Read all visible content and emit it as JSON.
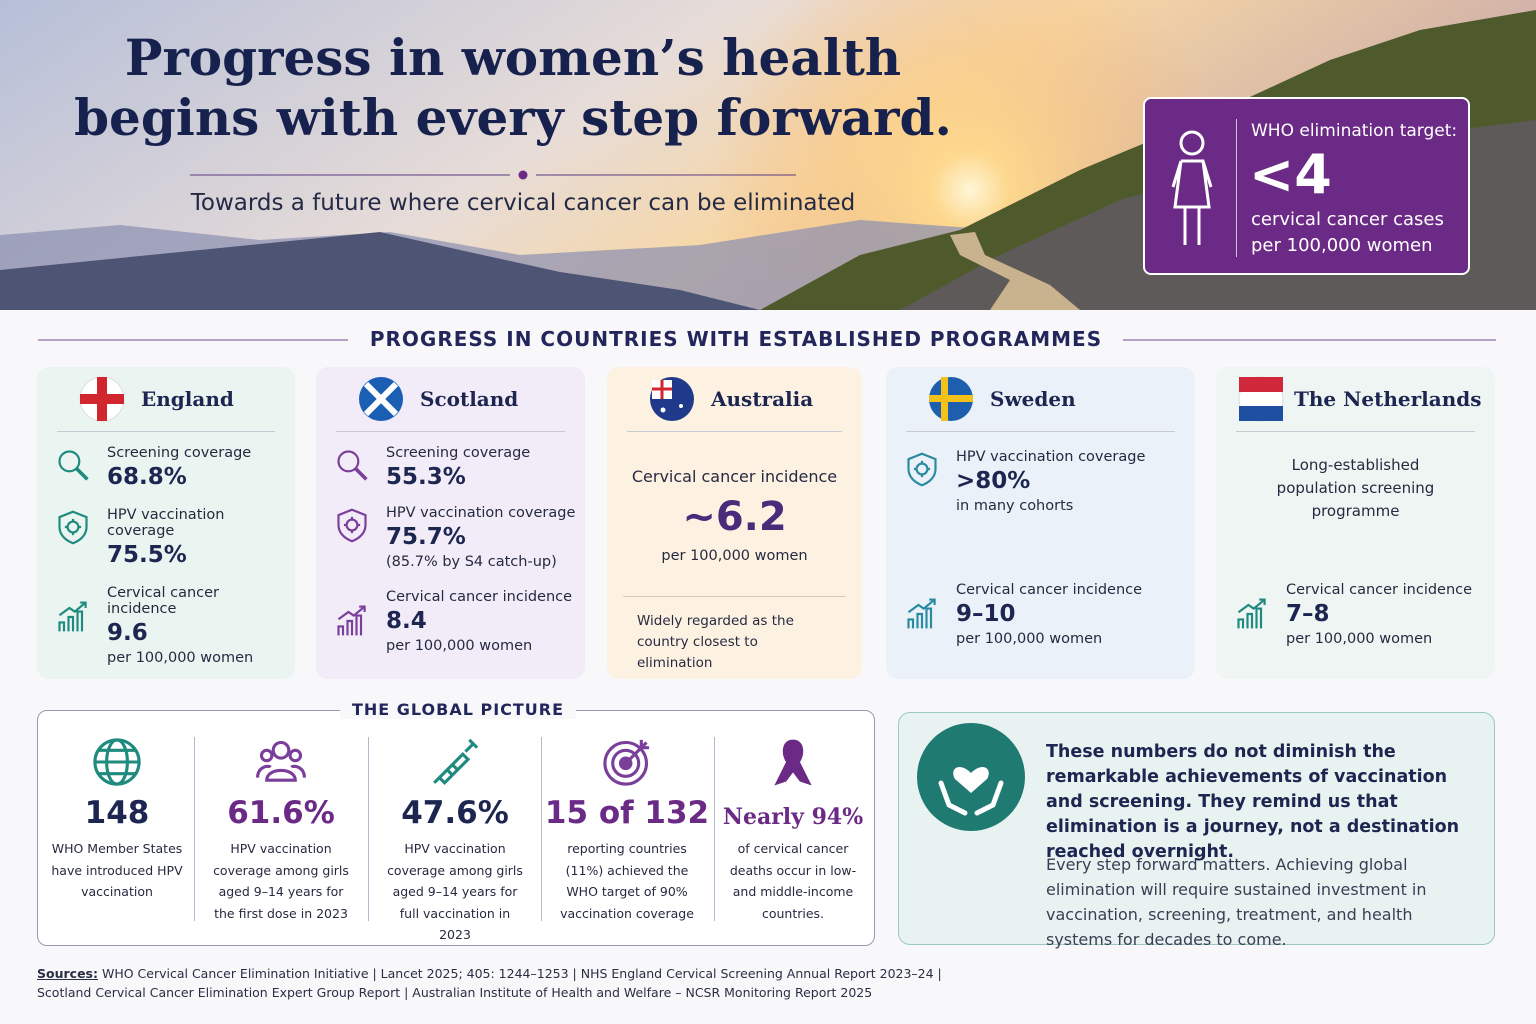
{
  "header": {
    "title_lines": [
      "Progress in women’s health",
      "begins with every step forward."
    ],
    "subtitle": "Towards a future where cervical cancer can be eliminated"
  },
  "target": {
    "label": "WHO elimination target:",
    "value": "<4",
    "unit_lines": [
      "cervical cancer cases",
      "per 100,000 women"
    ]
  },
  "section_title": "PROGRESS IN COUNTRIES WITH ESTABLISHED PROGRAMMES",
  "countries": [
    {
      "name": "England",
      "stats": [
        {
          "label": "Screening coverage",
          "value": "68.8%"
        },
        {
          "label": "HPV vaccination coverage",
          "value": "75.5%"
        },
        {
          "label": "Cervical cancer incidence",
          "value": "9.6",
          "note": "per 100,000 women"
        }
      ]
    },
    {
      "name": "Scotland",
      "stats": [
        {
          "label": "Screening coverage",
          "value": "55.3%"
        },
        {
          "label": "HPV vaccination coverage",
          "value": "75.7%",
          "note": "(85.7% by S4 catch-up)"
        },
        {
          "label": "Cervical cancer incidence",
          "value": "8.4",
          "note": "per 100,000 women"
        }
      ]
    },
    {
      "name": "Australia",
      "stats": [
        {
          "label": "Cervical cancer incidence",
          "value": "~6.2",
          "note": "per 100,000 women"
        }
      ],
      "remark": "Widely regarded as the country closest to elimination"
    },
    {
      "name": "Sweden",
      "stats": [
        {
          "label": "HPV vaccination coverage",
          "value": ">80%",
          "note": "in many cohorts"
        },
        {
          "label": "Cervical cancer incidence",
          "value": "9–10",
          "note": "per 100,000 women"
        }
      ]
    },
    {
      "name": "The Netherlands",
      "description": "Long-established population screening programme",
      "stats": [
        {
          "label": "Cervical cancer incidence",
          "value": "7–8",
          "note": "per 100,000 women"
        }
      ]
    }
  ],
  "global": {
    "title": "THE GLOBAL PICTURE",
    "items": [
      {
        "value": "148",
        "description": "WHO Member States have introduced HPV vaccination"
      },
      {
        "value": "61.6%",
        "description": "HPV vaccination coverage among girls aged 9–14 years for the first dose in 2023"
      },
      {
        "value": "47.6%",
        "description": "HPV vaccination coverage among girls aged 9–14 years for full vaccination in 2023"
      },
      {
        "value": "15 of 132",
        "description": "reporting countries (11%) achieved the WHO target of 90% vaccination coverage"
      },
      {
        "value": "Nearly 94%",
        "description": "of cervical cancer deaths occur in low- and middle-income countries."
      }
    ]
  },
  "message": {
    "headline": "These numbers do not diminish the remarkable achievements of vaccination and screening. They remind us that elimination is a journey, not a destination reached overnight.",
    "body": "Every step forward matters. Achieving global elimination will require sustained investment in vaccination, screening, treatment, and health systems for decades to come."
  },
  "sources": {
    "label": "Sources:",
    "lines": [
      "WHO Cervical Cancer Elimination Initiative | Lancet 2025; 405: 1244–1253 | NHS England Cervical Screening Annual Report 2023–24 |",
      "Scotland Cervical Cancer Elimination Expert Group Report | Australian Institute of Health and Welfare – NCSR Monitoring Report 2025"
    ]
  }
}
